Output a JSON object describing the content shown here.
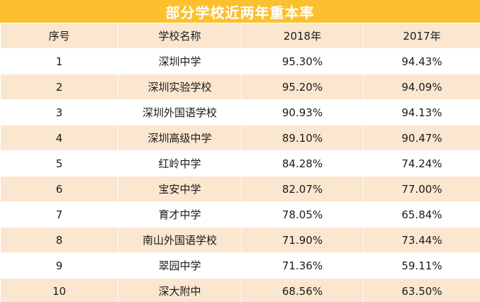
{
  "title": "部分学校近两年重本率",
  "colors": {
    "title_bg": "#fcc02f",
    "title_text": "#ffffff",
    "stripe": "#fbe6d0",
    "row_bg": "#ffffff"
  },
  "table": {
    "headers": [
      "序号",
      "学校名称",
      "2018年",
      "2017年"
    ],
    "rows": [
      [
        "1",
        "深圳中学",
        "95.30%",
        "94.43%"
      ],
      [
        "2",
        "深圳实验学校",
        "95.20%",
        "94.09%"
      ],
      [
        "3",
        "深圳外国语学校",
        "90.93%",
        "94.13%"
      ],
      [
        "4",
        "深圳高级中学",
        "89.10%",
        "90.47%"
      ],
      [
        "5",
        "红岭中学",
        "84.28%",
        "74.24%"
      ],
      [
        "6",
        "宝安中学",
        "82.07%",
        "77.00%"
      ],
      [
        "7",
        "育才中学",
        "78.05%",
        "65.84%"
      ],
      [
        "8",
        "南山外国语学校",
        "71.90%",
        "73.44%"
      ],
      [
        "9",
        "翠园中学",
        "71.36%",
        "59.11%"
      ],
      [
        "10",
        "深大附中",
        "68.56%",
        "63.50%"
      ]
    ]
  }
}
